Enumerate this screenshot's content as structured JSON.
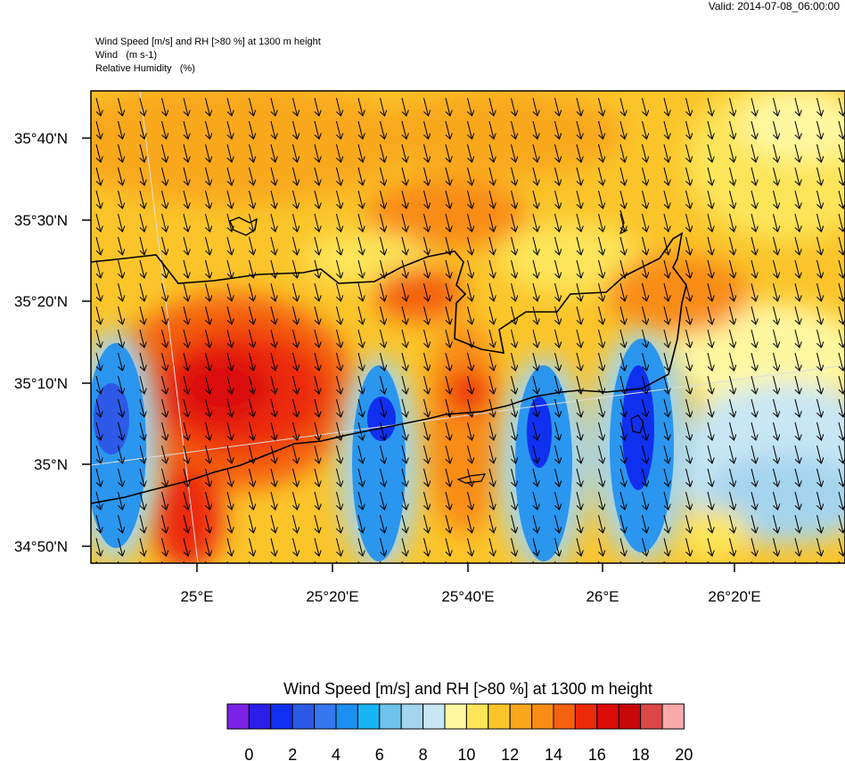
{
  "header": {
    "valid": "Valid: 2014-07-08_06:00:00",
    "title_lines": [
      "Wind Speed [m/s] and RH [>80 %] at 1300 m height",
      "Wind   (m s-1)",
      "Relative Humidity   (%)"
    ]
  },
  "map": {
    "lat_labels": [
      "35°40'N",
      "35°30'N",
      "35°20'N",
      "35°10'N",
      "35°N",
      "34°50'N"
    ],
    "lon_labels": [
      "25°E",
      "25°20'E",
      "25°40'E",
      "26°E",
      "26°20'E"
    ],
    "wind_direction": "north-northwesterly (arrows pointing south)"
  },
  "colorbar": {
    "title": "Wind Speed [m/s] and RH [>80 %] at 1300 m height",
    "tick_labels": [
      "0",
      "2",
      "4",
      "6",
      "8",
      "10",
      "12",
      "14",
      "16",
      "18",
      "20"
    ],
    "colors": [
      "#7a22e6",
      "#2a1ee8",
      "#1030f0",
      "#2c5ae6",
      "#3477ee",
      "#1d8ff0",
      "#16b4f2",
      "#6ec3ec",
      "#a4d4ee",
      "#c8e6f4",
      "#fff7a0",
      "#fde55a",
      "#fbc52a",
      "#f9a81a",
      "#f98c12",
      "#f56210",
      "#ec2a0a",
      "#dc0c0a",
      "#c80808",
      "#dc4848",
      "#f8aaaa"
    ]
  }
}
